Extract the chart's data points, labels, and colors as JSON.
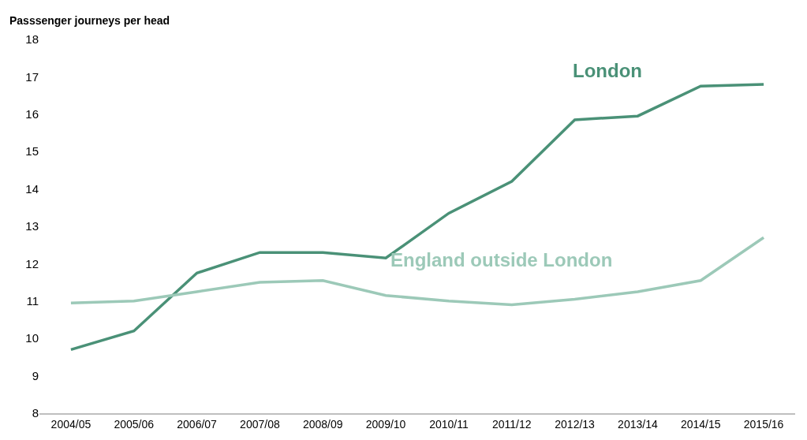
{
  "chart_data": {
    "type": "line",
    "ylabel": "Passsenger journeys per head",
    "categories": [
      "2004/05",
      "2005/06",
      "2006/07",
      "2007/08",
      "2008/09",
      "2009/10",
      "2010/11",
      "2011/12",
      "2012/13",
      "2013/14",
      "2014/15",
      "2015/16"
    ],
    "series": [
      {
        "name": "London",
        "color": "#4a9177",
        "values": [
          9.7,
          10.2,
          11.75,
          12.3,
          12.3,
          12.15,
          13.35,
          14.2,
          15.85,
          15.95,
          16.75,
          16.8
        ]
      },
      {
        "name": "England outside London",
        "color": "#9cc9b8",
        "values": [
          10.95,
          11.0,
          11.25,
          11.5,
          11.55,
          11.15,
          11.0,
          10.9,
          11.05,
          11.25,
          11.55,
          12.7
        ]
      }
    ],
    "ylim": [
      8,
      18
    ],
    "yticks": [
      8,
      9,
      10,
      11,
      12,
      13,
      14,
      15,
      16,
      17,
      18
    ],
    "legend": false,
    "marker": "none",
    "line_style": "solid"
  }
}
